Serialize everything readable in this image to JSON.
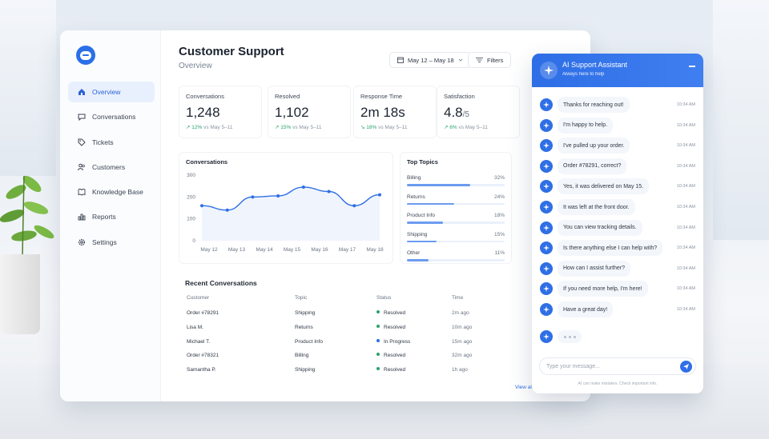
{
  "sidebar": {
    "logo_icon": "chat-bubble-icon",
    "items": [
      {
        "label": "Overview",
        "icon": "home-icon",
        "active": true
      },
      {
        "label": "Conversations",
        "icon": "chat-icon",
        "active": false
      },
      {
        "label": "Tickets",
        "icon": "tag-icon",
        "active": false
      },
      {
        "label": "Customers",
        "icon": "users-icon",
        "active": false
      },
      {
        "label": "Knowledge Base",
        "icon": "book-icon",
        "active": false
      },
      {
        "label": "Reports",
        "icon": "bar-chart-icon",
        "active": false
      },
      {
        "label": "Settings",
        "icon": "gear-icon",
        "active": false
      }
    ]
  },
  "header": {
    "title": "Customer Support",
    "subtitle": "Overview",
    "date_range": "May 12 – May 18",
    "filters_label": "Filters"
  },
  "kpis": [
    {
      "label": "Conversations",
      "value": "1,248",
      "suffix": "",
      "delta": "↗ 12%",
      "vs": "vs May 5–11",
      "direction": "up"
    },
    {
      "label": "Resolved",
      "value": "1,102",
      "suffix": "",
      "delta": "↗ 15%",
      "vs": "vs May 5–11",
      "direction": "up"
    },
    {
      "label": "Response Time",
      "value": "2m 18s",
      "suffix": "",
      "delta": "↘ 18%",
      "vs": "vs May 5–11",
      "direction": "down"
    },
    {
      "label": "Satisfaction",
      "value": "4.8",
      "suffix": "/5",
      "delta": "↗ 6%",
      "vs": "vs May 5–11",
      "direction": "up"
    }
  ],
  "chart_data": {
    "type": "line",
    "title": "Conversations",
    "categories": [
      "May 12",
      "May 13",
      "May 14",
      "May 15",
      "May 16",
      "May 17",
      "May 18"
    ],
    "x": [
      "May 12",
      "May 12",
      "May 13",
      "May 14",
      "May 15",
      "May 16",
      "May 17",
      "May 18"
    ],
    "values": [
      160,
      140,
      200,
      205,
      245,
      225,
      160,
      210
    ],
    "ylim": [
      0,
      300
    ],
    "yticks": [
      "300",
      "200",
      "100",
      "0"
    ],
    "grid": false,
    "color": "#2f6fe6"
  },
  "top_topics": {
    "title": "Top Topics",
    "items": [
      {
        "label": "Billing",
        "pct": "32%",
        "value": 0.32
      },
      {
        "label": "Returns",
        "pct": "24%",
        "value": 0.24
      },
      {
        "label": "Product Info",
        "pct": "18%",
        "value": 0.18
      },
      {
        "label": "Shipping",
        "pct": "15%",
        "value": 0.15
      },
      {
        "label": "Other",
        "pct": "11%",
        "value": 0.11
      }
    ]
  },
  "recent": {
    "title": "Recent Conversations",
    "headers": [
      "Customer",
      "Topic",
      "Status",
      "Time"
    ],
    "rows": [
      {
        "customer": "Order #78291",
        "topic": "Shipping",
        "status": "Resolved",
        "time": "2m ago",
        "status_color": "#2aa36a"
      },
      {
        "customer": "Lisa M.",
        "topic": "Returns",
        "status": "Resolved",
        "time": "10m ago",
        "status_color": "#2aa36a"
      },
      {
        "customer": "Michael T.",
        "topic": "Product Info",
        "status": "In Progress",
        "time": "15m ago",
        "status_color": "#2f6fe6"
      },
      {
        "customer": "Order #78321",
        "topic": "Billing",
        "status": "Resolved",
        "time": "32m ago",
        "status_color": "#2aa36a"
      },
      {
        "customer": "Samantha P.",
        "topic": "Shipping",
        "status": "Resolved",
        "time": "1h ago",
        "status_color": "#2aa36a"
      }
    ],
    "view_all": "View all conversations"
  },
  "chat": {
    "title": "AI Support Assistant",
    "subtitle": "Always here to help",
    "messages": [
      {
        "text": "Thanks for reaching out!",
        "time": "10:34 AM"
      },
      {
        "text": "I'm happy to help.",
        "time": "10:34 AM"
      },
      {
        "text": "I've pulled up your order.",
        "time": "10:34 AM"
      },
      {
        "text": "Order #78291, correct?",
        "time": "10:34 AM"
      },
      {
        "text": "Yes, it was delivered on May 15.",
        "time": "10:34 AM"
      },
      {
        "text": "It was left at the front door.",
        "time": "10:34 AM"
      },
      {
        "text": "You can view tracking details.",
        "time": "10:34 AM"
      },
      {
        "text": "Is there anything else I can help with?",
        "time": "10:34 AM"
      },
      {
        "text": "How can I assist further?",
        "time": "10:34 AM"
      },
      {
        "text": "If you need more help, I'm here!",
        "time": "10:34 AM"
      },
      {
        "text": "Have a great day!",
        "time": "10:34 AM"
      }
    ],
    "input_placeholder": "Type your message...",
    "disclaimer": "AI can make mistakes. Check important info."
  },
  "colors": {
    "accent": "#2f6fe6",
    "success": "#2aa36a"
  }
}
